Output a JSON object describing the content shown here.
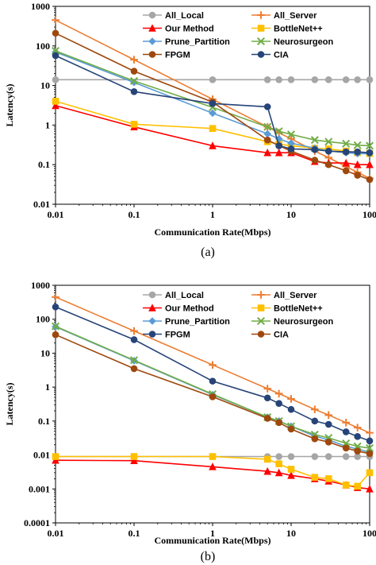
{
  "chart_data": [
    {
      "type": "line",
      "subcaption": "(a)",
      "xlabel": "Communication Rate(Mbps)",
      "ylabel": "Latency(s)",
      "xscale": "log",
      "yscale": "log",
      "xlim": [
        0.01,
        100
      ],
      "ylim": [
        0.01,
        1000
      ],
      "xticks": [
        "0.01",
        "0.1",
        "1",
        "10",
        "100"
      ],
      "yticks": [
        "0.01",
        "0.1",
        "1",
        "10",
        "100",
        "1000"
      ],
      "legend_position": "top-right",
      "series": [
        {
          "name": "All_Local",
          "color": "#a6a6a6",
          "marker": "circle",
          "x": [
            0.01,
            1,
            5,
            7,
            10,
            20,
            30,
            50,
            70,
            100
          ],
          "y": [
            14,
            14,
            14,
            14,
            14,
            14,
            14,
            14,
            14,
            14
          ]
        },
        {
          "name": "All_Server",
          "color": "#ed7d31",
          "marker": "plus",
          "x": [
            0.01,
            0.1,
            1,
            5,
            7,
            10,
            20,
            30,
            50,
            70,
            100
          ],
          "y": [
            450,
            45,
            4.5,
            0.9,
            0.64,
            0.45,
            0.22,
            0.15,
            0.09,
            0.064,
            0.045
          ]
        },
        {
          "name": "Our Method",
          "color": "#ff0000",
          "marker": "triangle",
          "x": [
            0.01,
            0.1,
            1,
            5,
            7,
            10,
            20,
            30,
            50,
            70,
            100
          ],
          "y": [
            3.1,
            0.9,
            0.3,
            0.2,
            0.2,
            0.2,
            0.12,
            0.11,
            0.11,
            0.1,
            0.1
          ]
        },
        {
          "name": "BottleNet++",
          "color": "#ffc000",
          "marker": "square",
          "x": [
            0.01,
            0.1,
            1,
            5,
            7,
            10,
            20,
            30,
            50,
            70,
            100
          ],
          "y": [
            4,
            1.05,
            0.82,
            0.38,
            0.33,
            0.3,
            0.26,
            0.25,
            0.22,
            0.2,
            0.19
          ]
        },
        {
          "name": "Prune_Partition",
          "color": "#5b9bd5",
          "marker": "diamond",
          "x": [
            0.01,
            0.1,
            1,
            5,
            7,
            10,
            20,
            30,
            50,
            70,
            100
          ],
          "y": [
            70,
            12,
            2,
            0.6,
            0.45,
            0.35,
            0.26,
            0.22,
            0.2,
            0.19,
            0.19
          ]
        },
        {
          "name": "Neurosurgeon",
          "color": "#70ad47",
          "marker": "x",
          "x": [
            0.01,
            0.1,
            1,
            5,
            7,
            10,
            20,
            30,
            50,
            70,
            100
          ],
          "y": [
            75,
            13,
            2.8,
            0.9,
            0.7,
            0.58,
            0.42,
            0.38,
            0.34,
            0.31,
            0.3
          ]
        },
        {
          "name": "FPGM",
          "color": "#9e480e",
          "marker": "circle",
          "x": [
            0.01,
            0.1,
            1,
            5,
            7,
            10,
            20,
            30,
            50,
            70,
            100
          ],
          "y": [
            210,
            23,
            3.8,
            0.42,
            0.3,
            0.22,
            0.13,
            0.1,
            0.07,
            0.054,
            0.042
          ]
        },
        {
          "name": "CIA",
          "color": "#264478",
          "marker": "circle",
          "x": [
            0.01,
            0.1,
            1,
            5,
            7,
            10,
            20,
            30,
            50,
            70,
            100
          ],
          "y": [
            57,
            7,
            3.5,
            2.9,
            0.3,
            0.25,
            0.24,
            0.22,
            0.21,
            0.21,
            0.2
          ]
        }
      ]
    },
    {
      "type": "line",
      "subcaption": "(b)",
      "xlabel": "Communication Rate(Mbps)",
      "ylabel": "Latency(s)",
      "xscale": "log",
      "yscale": "log",
      "xlim": [
        0.01,
        100
      ],
      "ylim": [
        0.0001,
        1000
      ],
      "xticks": [
        "0.01",
        "0.1",
        "1",
        "10",
        "100"
      ],
      "yticks": [
        "0.0001",
        "0.001",
        "0.01",
        "0.1",
        "1",
        "10",
        "100",
        "1000"
      ],
      "legend_position": "top-right",
      "series": [
        {
          "name": "All_Local",
          "color": "#a6a6a6",
          "marker": "circle",
          "x": [
            0.01,
            0.1,
            1,
            5,
            7,
            10,
            20,
            30,
            50,
            70,
            100
          ],
          "y": [
            0.009,
            0.009,
            0.009,
            0.009,
            0.009,
            0.009,
            0.009,
            0.009,
            0.009,
            0.009,
            0.009
          ]
        },
        {
          "name": "All_Server",
          "color": "#ed7d31",
          "marker": "plus",
          "x": [
            0.01,
            0.1,
            1,
            5,
            7,
            10,
            20,
            30,
            50,
            70,
            100
          ],
          "y": [
            450,
            45,
            4.5,
            0.9,
            0.64,
            0.45,
            0.22,
            0.15,
            0.09,
            0.064,
            0.045
          ]
        },
        {
          "name": "Our Method",
          "color": "#ff0000",
          "marker": "triangle",
          "x": [
            0.01,
            0.1,
            1,
            5,
            7,
            10,
            20,
            30,
            50,
            70,
            100
          ],
          "y": [
            0.007,
            0.0068,
            0.0045,
            0.0033,
            0.003,
            0.0025,
            0.002,
            0.0017,
            0.0013,
            0.0011,
            0.001
          ]
        },
        {
          "name": "BottleNet++",
          "color": "#ffc000",
          "marker": "square",
          "x": [
            0.01,
            0.1,
            1,
            5,
            7,
            10,
            20,
            30,
            50,
            70,
            100
          ],
          "y": [
            0.009,
            0.009,
            0.009,
            0.0075,
            0.0055,
            0.0038,
            0.0022,
            0.002,
            0.0013,
            0.0012,
            0.003
          ]
        },
        {
          "name": "Prune_Partition",
          "color": "#5b9bd5",
          "marker": "diamond",
          "x": [
            0.01,
            0.1,
            1,
            5,
            7,
            10,
            20,
            30,
            50,
            70,
            100
          ],
          "y": [
            60,
            6,
            0.6,
            0.13,
            0.1,
            0.07,
            0.036,
            0.028,
            0.018,
            0.015,
            0.012
          ]
        },
        {
          "name": "Neurosurgeon",
          "color": "#70ad47",
          "marker": "x",
          "x": [
            0.01,
            0.1,
            1,
            5,
            7,
            10,
            20,
            30,
            50,
            70,
            100
          ],
          "y": [
            62,
            6.2,
            0.62,
            0.13,
            0.1,
            0.07,
            0.04,
            0.032,
            0.022,
            0.018,
            0.016
          ]
        },
        {
          "name": "FPGM",
          "color": "#264478",
          "marker": "circle",
          "x": [
            0.01,
            0.1,
            1,
            5,
            7,
            10,
            20,
            30,
            50,
            70,
            100
          ],
          "y": [
            230,
            25,
            1.5,
            0.48,
            0.33,
            0.22,
            0.1,
            0.08,
            0.048,
            0.035,
            0.026
          ]
        },
        {
          "name": "CIA",
          "color": "#9e480e",
          "marker": "circle",
          "x": [
            0.01,
            0.1,
            1,
            5,
            7,
            10,
            20,
            30,
            50,
            70,
            100
          ],
          "y": [
            35,
            3.5,
            0.52,
            0.12,
            0.09,
            0.058,
            0.03,
            0.024,
            0.016,
            0.013,
            0.011
          ]
        }
      ]
    }
  ]
}
